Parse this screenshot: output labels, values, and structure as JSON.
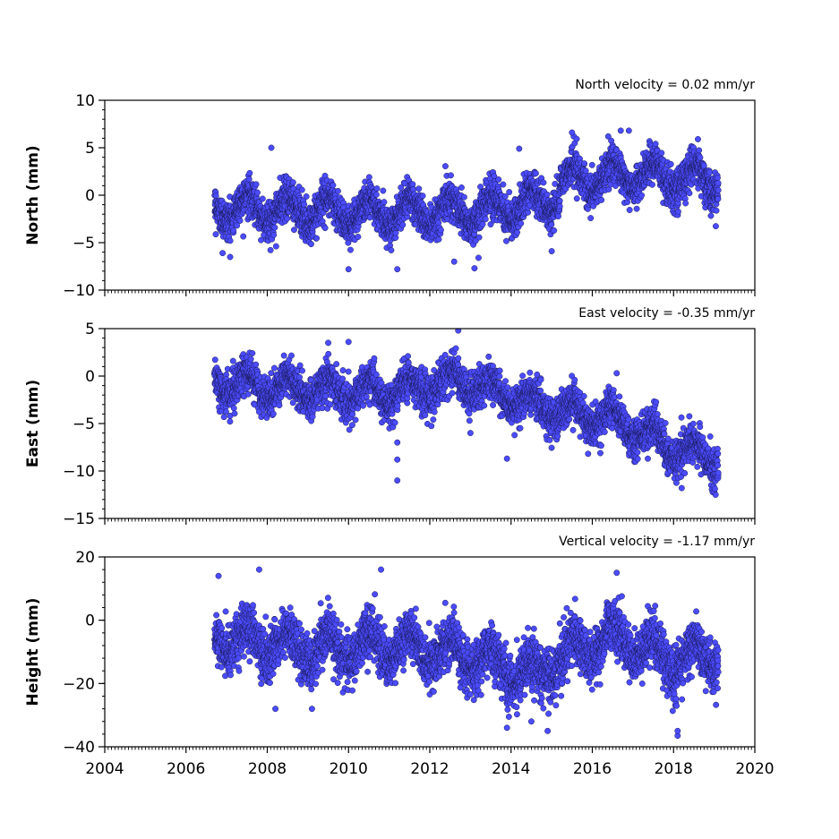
{
  "chart_data": [
    {
      "type": "scatter",
      "ylabel": "North (mm)",
      "annotation": "North velocity = 0.02 mm/yr",
      "xlim": [
        2004,
        2020
      ],
      "ylim": [
        -10,
        10
      ],
      "yticks": [
        -10,
        -5,
        0,
        5,
        10
      ],
      "marker_color": "#4b4bff",
      "edge_color": "#1a1a55",
      "x_start": 2006.7,
      "x_end": 2019.1,
      "seasonal_amplitude": 1.4,
      "noise": 1.0,
      "trend_points": [
        {
          "x": 2006.7,
          "y": -1.2
        },
        {
          "x": 2010.0,
          "y": -1.8
        },
        {
          "x": 2013.0,
          "y": -1.8
        },
        {
          "x": 2015.0,
          "y": -0.5
        },
        {
          "x": 2015.3,
          "y": 1.5
        },
        {
          "x": 2017.0,
          "y": 2.2
        },
        {
          "x": 2019.1,
          "y": 1.5
        }
      ],
      "outliers": [
        {
          "x": 2006.9,
          "y": -6.1
        },
        {
          "x": 2008.1,
          "y": 5.0
        },
        {
          "x": 2010.0,
          "y": -7.8
        },
        {
          "x": 2011.2,
          "y": -7.8
        },
        {
          "x": 2012.6,
          "y": -7.0
        },
        {
          "x": 2013.1,
          "y": -7.7
        },
        {
          "x": 2013.2,
          "y": -6.6
        },
        {
          "x": 2015.0,
          "y": -5.9
        },
        {
          "x": 2015.5,
          "y": 6.6
        },
        {
          "x": 2016.7,
          "y": 6.8
        },
        {
          "x": 2016.9,
          "y": 6.8
        },
        {
          "x": 2014.2,
          "y": 4.9
        },
        {
          "x": 2018.6,
          "y": 5.9
        }
      ]
    },
    {
      "type": "scatter",
      "ylabel": "East (mm)",
      "annotation": "East velocity = -0.35 mm/yr",
      "xlim": [
        2004,
        2020
      ],
      "ylim": [
        -15,
        5
      ],
      "yticks": [
        -15,
        -10,
        -5,
        0,
        5
      ],
      "marker_color": "#4b4bff",
      "edge_color": "#1a1a55",
      "x_start": 2006.7,
      "x_end": 2019.1,
      "seasonal_amplitude": 1.2,
      "noise": 1.0,
      "trend_points": [
        {
          "x": 2006.7,
          "y": -0.5
        },
        {
          "x": 2008.0,
          "y": -1.2
        },
        {
          "x": 2011.0,
          "y": -1.8
        },
        {
          "x": 2012.7,
          "y": -0.3
        },
        {
          "x": 2013.5,
          "y": -1.5
        },
        {
          "x": 2015.0,
          "y": -3.5
        },
        {
          "x": 2016.5,
          "y": -4.5
        },
        {
          "x": 2018.0,
          "y": -7.5
        },
        {
          "x": 2019.1,
          "y": -8.8
        }
      ],
      "outliers": [
        {
          "x": 2011.2,
          "y": -7.0
        },
        {
          "x": 2011.2,
          "y": -8.8
        },
        {
          "x": 2011.2,
          "y": -11.0
        },
        {
          "x": 2012.7,
          "y": 4.8
        },
        {
          "x": 2013.9,
          "y": -8.7
        },
        {
          "x": 2013.0,
          "y": -6.0
        },
        {
          "x": 2009.5,
          "y": 3.5
        },
        {
          "x": 2010.0,
          "y": 3.6
        },
        {
          "x": 2018.2,
          "y": -11.8
        },
        {
          "x": 2016.6,
          "y": 0.3
        }
      ]
    },
    {
      "type": "scatter",
      "ylabel": "Height (mm)",
      "annotation": "Vertical velocity = -1.17 mm/yr",
      "xlim": [
        2004,
        2020
      ],
      "ylim": [
        -40,
        20
      ],
      "yticks": [
        -40,
        -20,
        0,
        20
      ],
      "xticks": [
        2004,
        2006,
        2008,
        2010,
        2012,
        2014,
        2016,
        2018,
        2020
      ],
      "marker_color": "#4b4bff",
      "edge_color": "#1a1a55",
      "x_start": 2006.7,
      "x_end": 2019.1,
      "seasonal_amplitude": 4.5,
      "noise": 4.0,
      "trend_points": [
        {
          "x": 2006.7,
          "y": -5.0
        },
        {
          "x": 2009.0,
          "y": -9.0
        },
        {
          "x": 2011.0,
          "y": -8.0
        },
        {
          "x": 2013.0,
          "y": -11.0
        },
        {
          "x": 2014.5,
          "y": -18.0
        },
        {
          "x": 2015.5,
          "y": -10.0
        },
        {
          "x": 2016.5,
          "y": -5.0
        },
        {
          "x": 2018.0,
          "y": -13.0
        },
        {
          "x": 2019.1,
          "y": -11.0
        }
      ],
      "outliers": [
        {
          "x": 2006.8,
          "y": 14.0
        },
        {
          "x": 2007.8,
          "y": 16.0
        },
        {
          "x": 2010.8,
          "y": 16.0
        },
        {
          "x": 2016.6,
          "y": 15.0
        },
        {
          "x": 2018.1,
          "y": -36.5
        },
        {
          "x": 2018.1,
          "y": -35.0
        },
        {
          "x": 2014.9,
          "y": -35.0
        },
        {
          "x": 2014.5,
          "y": -32.0
        },
        {
          "x": 2013.9,
          "y": -34.0
        },
        {
          "x": 2008.2,
          "y": -28.0
        },
        {
          "x": 2009.1,
          "y": -28.0
        }
      ]
    }
  ]
}
